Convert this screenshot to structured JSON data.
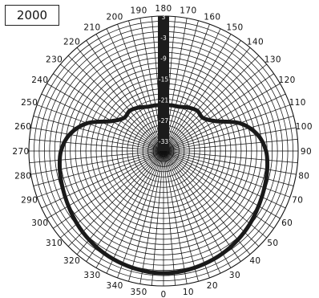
{
  "chart_data": {
    "type": "polar",
    "title": "2000",
    "angle_labels": [
      "0",
      "10",
      "20",
      "30",
      "40",
      "50",
      "60",
      "70",
      "80",
      "90",
      "100",
      "110",
      "120",
      "130",
      "140",
      "150",
      "160",
      "170",
      "180",
      "190",
      "200",
      "210",
      "220",
      "230",
      "240",
      "250",
      "260",
      "270",
      "280",
      "290",
      "300",
      "310",
      "320",
      "330",
      "340",
      "350"
    ],
    "radial_labels": [
      "3",
      "-3",
      "-9",
      "-15",
      "-21",
      "-27",
      "-33"
    ],
    "radial_range": [
      -36,
      3
    ],
    "angle_step": 10,
    "grid": true,
    "series": [
      {
        "angles": [
          0,
          10,
          20,
          30,
          40,
          50,
          60,
          70,
          80,
          90,
          100,
          110,
          120,
          130,
          140,
          150,
          160,
          170,
          180,
          190,
          200,
          210,
          220,
          230,
          240,
          250,
          260,
          270,
          280,
          290,
          300,
          310,
          320,
          330,
          340,
          350
        ],
        "values": [
          -0.7,
          -0.9,
          -1.3,
          -1.8,
          -2.5,
          -3.3,
          -4.2,
          -4.9,
          -5.5,
          -6.3,
          -8.4,
          -12.5,
          -18.7,
          -21.1,
          -20.8,
          -21.5,
          -22.4,
          -22.6,
          -22.7,
          -22.6,
          -22.4,
          -21.5,
          -20.8,
          -21.1,
          -18.7,
          -12.5,
          -8.4,
          -6.3,
          -5.5,
          -4.9,
          -4.2,
          -3.3,
          -2.5,
          -1.8,
          -1.3,
          -0.9
        ],
        "color": "#1a1a1a"
      }
    ]
  }
}
